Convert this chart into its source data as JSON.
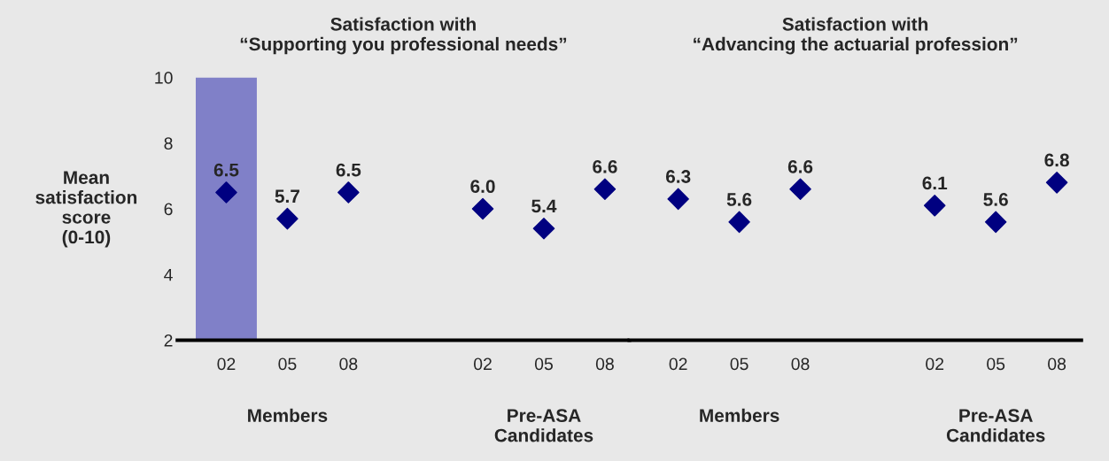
{
  "chart_data": [
    {
      "type": "scatter",
      "title": "Satisfaction with\n“Supporting you professional needs”",
      "ylabel": "Mean\nsatisfaction\nscore\n(0-10)",
      "categories": [
        "02",
        "05",
        "08",
        "02",
        "05",
        "08"
      ],
      "series": [
        {
          "color": "#000080",
          "values": [
            6.5,
            5.7,
            6.5,
            6.0,
            5.4,
            6.6
          ],
          "value_labels": [
            "6.5",
            "5.7",
            "6.5",
            "6.0",
            "5.4",
            "6.6"
          ]
        }
      ],
      "ylim": [
        2,
        10
      ],
      "yticks": [
        2,
        4,
        6,
        8,
        10
      ],
      "marker": "diamond",
      "bands": [
        {
          "axis": "x",
          "from": "02",
          "to": "02",
          "color": "#8080c8"
        }
      ],
      "annotations": [
        "Members",
        "Pre-ASA\nCandidates"
      ]
    },
    {
      "type": "scatter",
      "title": "Satisfaction with\n“Advancing the actuarial profession”",
      "categories": [
        "02",
        "05",
        "08",
        "02",
        "05",
        "08"
      ],
      "series": [
        {
          "color": "#000080",
          "values": [
            6.3,
            5.6,
            6.6,
            6.1,
            5.6,
            6.8
          ],
          "value_labels": [
            "6.3",
            "5.6",
            "6.6",
            "6.1",
            "5.6",
            "6.8"
          ]
        }
      ],
      "ylim": [
        2,
        10
      ],
      "yticks": [
        2,
        4,
        6,
        8,
        10
      ],
      "tick_labels": "x",
      "marker": "diamond",
      "annotations": [
        "Members",
        "Pre-ASA\nCandidates"
      ]
    }
  ]
}
